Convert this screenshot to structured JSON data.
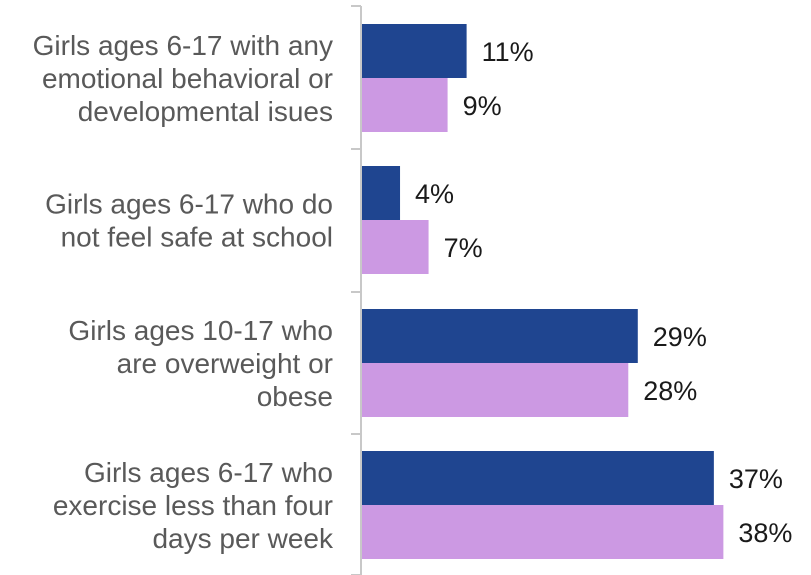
{
  "chart_data": {
    "type": "bar",
    "orientation": "horizontal",
    "categories": [
      [
        "Girls ages 6-17 with any",
        "emotional behavioral or",
        "developmental isues"
      ],
      [
        "Girls ages 6-17 who do",
        "not feel safe at school"
      ],
      [
        "Girls ages 10-17 who",
        "are overweight or",
        "obese"
      ],
      [
        "Girls ages 6-17 who",
        "exercise less than four",
        "days per week"
      ]
    ],
    "series": [
      {
        "values": [
          11,
          4,
          29,
          37
        ],
        "labels": [
          "11%",
          "4%",
          "29%",
          "37%"
        ],
        "color": "#1f4590"
      },
      {
        "values": [
          9,
          7,
          28,
          38
        ],
        "labels": [
          "9%",
          "7%",
          "28%",
          "38%"
        ],
        "color": "#cc99e3"
      }
    ],
    "xlim": [
      0,
      40
    ],
    "axis_color": "#c8c8c8",
    "grid": false,
    "legend": "none"
  }
}
